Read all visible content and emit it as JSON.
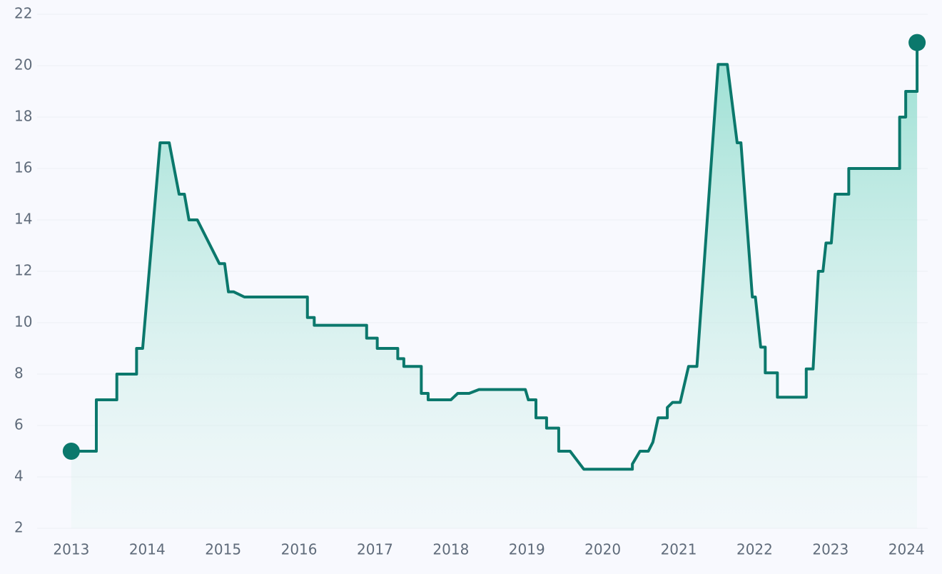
{
  "chart_data": {
    "type": "line",
    "x": [
      2013.0,
      2013.33,
      2013.33,
      2013.6,
      2013.6,
      2013.86,
      2013.86,
      2013.94,
      2014.17,
      2014.29,
      2014.42,
      2014.49,
      2014.55,
      2014.66,
      2014.95,
      2015.02,
      2015.07,
      2015.14,
      2015.28,
      2016.11,
      2016.11,
      2016.2,
      2016.2,
      2016.89,
      2016.89,
      2017.03,
      2017.03,
      2017.3,
      2017.3,
      2017.38,
      2017.38,
      2017.61,
      2017.61,
      2017.7,
      2017.7,
      2018.0,
      2018.09,
      2018.24,
      2018.37,
      2018.98,
      2019.02,
      2019.12,
      2019.12,
      2019.26,
      2019.26,
      2019.42,
      2019.42,
      2019.57,
      2019.75,
      2020.39,
      2020.39,
      2020.49,
      2020.6,
      2020.66,
      2020.73,
      2020.85,
      2020.85,
      2020.92,
      2021.02,
      2021.13,
      2021.24,
      2021.52,
      2021.64,
      2021.77,
      2021.82,
      2021.97,
      2022.01,
      2022.08,
      2022.14,
      2022.14,
      2022.3,
      2022.3,
      2022.68,
      2022.68,
      2022.77,
      2022.84,
      2022.9,
      2022.94,
      2023.01,
      2023.06,
      2023.24,
      2023.24,
      2023.91,
      2023.91,
      2023.99,
      2023.99,
      2024.14,
      2024.14
    ],
    "values": [
      5,
      5,
      7,
      7,
      8,
      8,
      9,
      9,
      17,
      17,
      15,
      15,
      14,
      14,
      12.3,
      12.3,
      11.2,
      11.2,
      11,
      11,
      10.2,
      10.2,
      9.9,
      9.9,
      9.4,
      9.4,
      9,
      9,
      8.6,
      8.6,
      8.3,
      8.3,
      7.25,
      7.25,
      7,
      7,
      7.25,
      7.25,
      7.4,
      7.4,
      7,
      7,
      6.3,
      6.3,
      5.9,
      5.9,
      5,
      5,
      4.3,
      4.3,
      4.5,
      5,
      5,
      5.35,
      6.3,
      6.3,
      6.7,
      6.9,
      6.9,
      8.3,
      8.3,
      20.05,
      20.05,
      17,
      17,
      11,
      11,
      9.05,
      9.05,
      8.05,
      8.05,
      7.1,
      7.1,
      8.2,
      8.2,
      12,
      12,
      13.1,
      13.1,
      15,
      15,
      16,
      16,
      18,
      18,
      19,
      19,
      20.9
    ],
    "color": "#0b786c",
    "xlim": [
      2012.55,
      2024.28
    ],
    "ylim": [
      2,
      22
    ],
    "xticks": [
      2013,
      2014,
      2015,
      2016,
      2017,
      2018,
      2019,
      2020,
      2021,
      2022,
      2023,
      2024
    ],
    "yticks": [
      2,
      4,
      6,
      8,
      10,
      12,
      14,
      16,
      18,
      20,
      22
    ],
    "grid": true
  }
}
